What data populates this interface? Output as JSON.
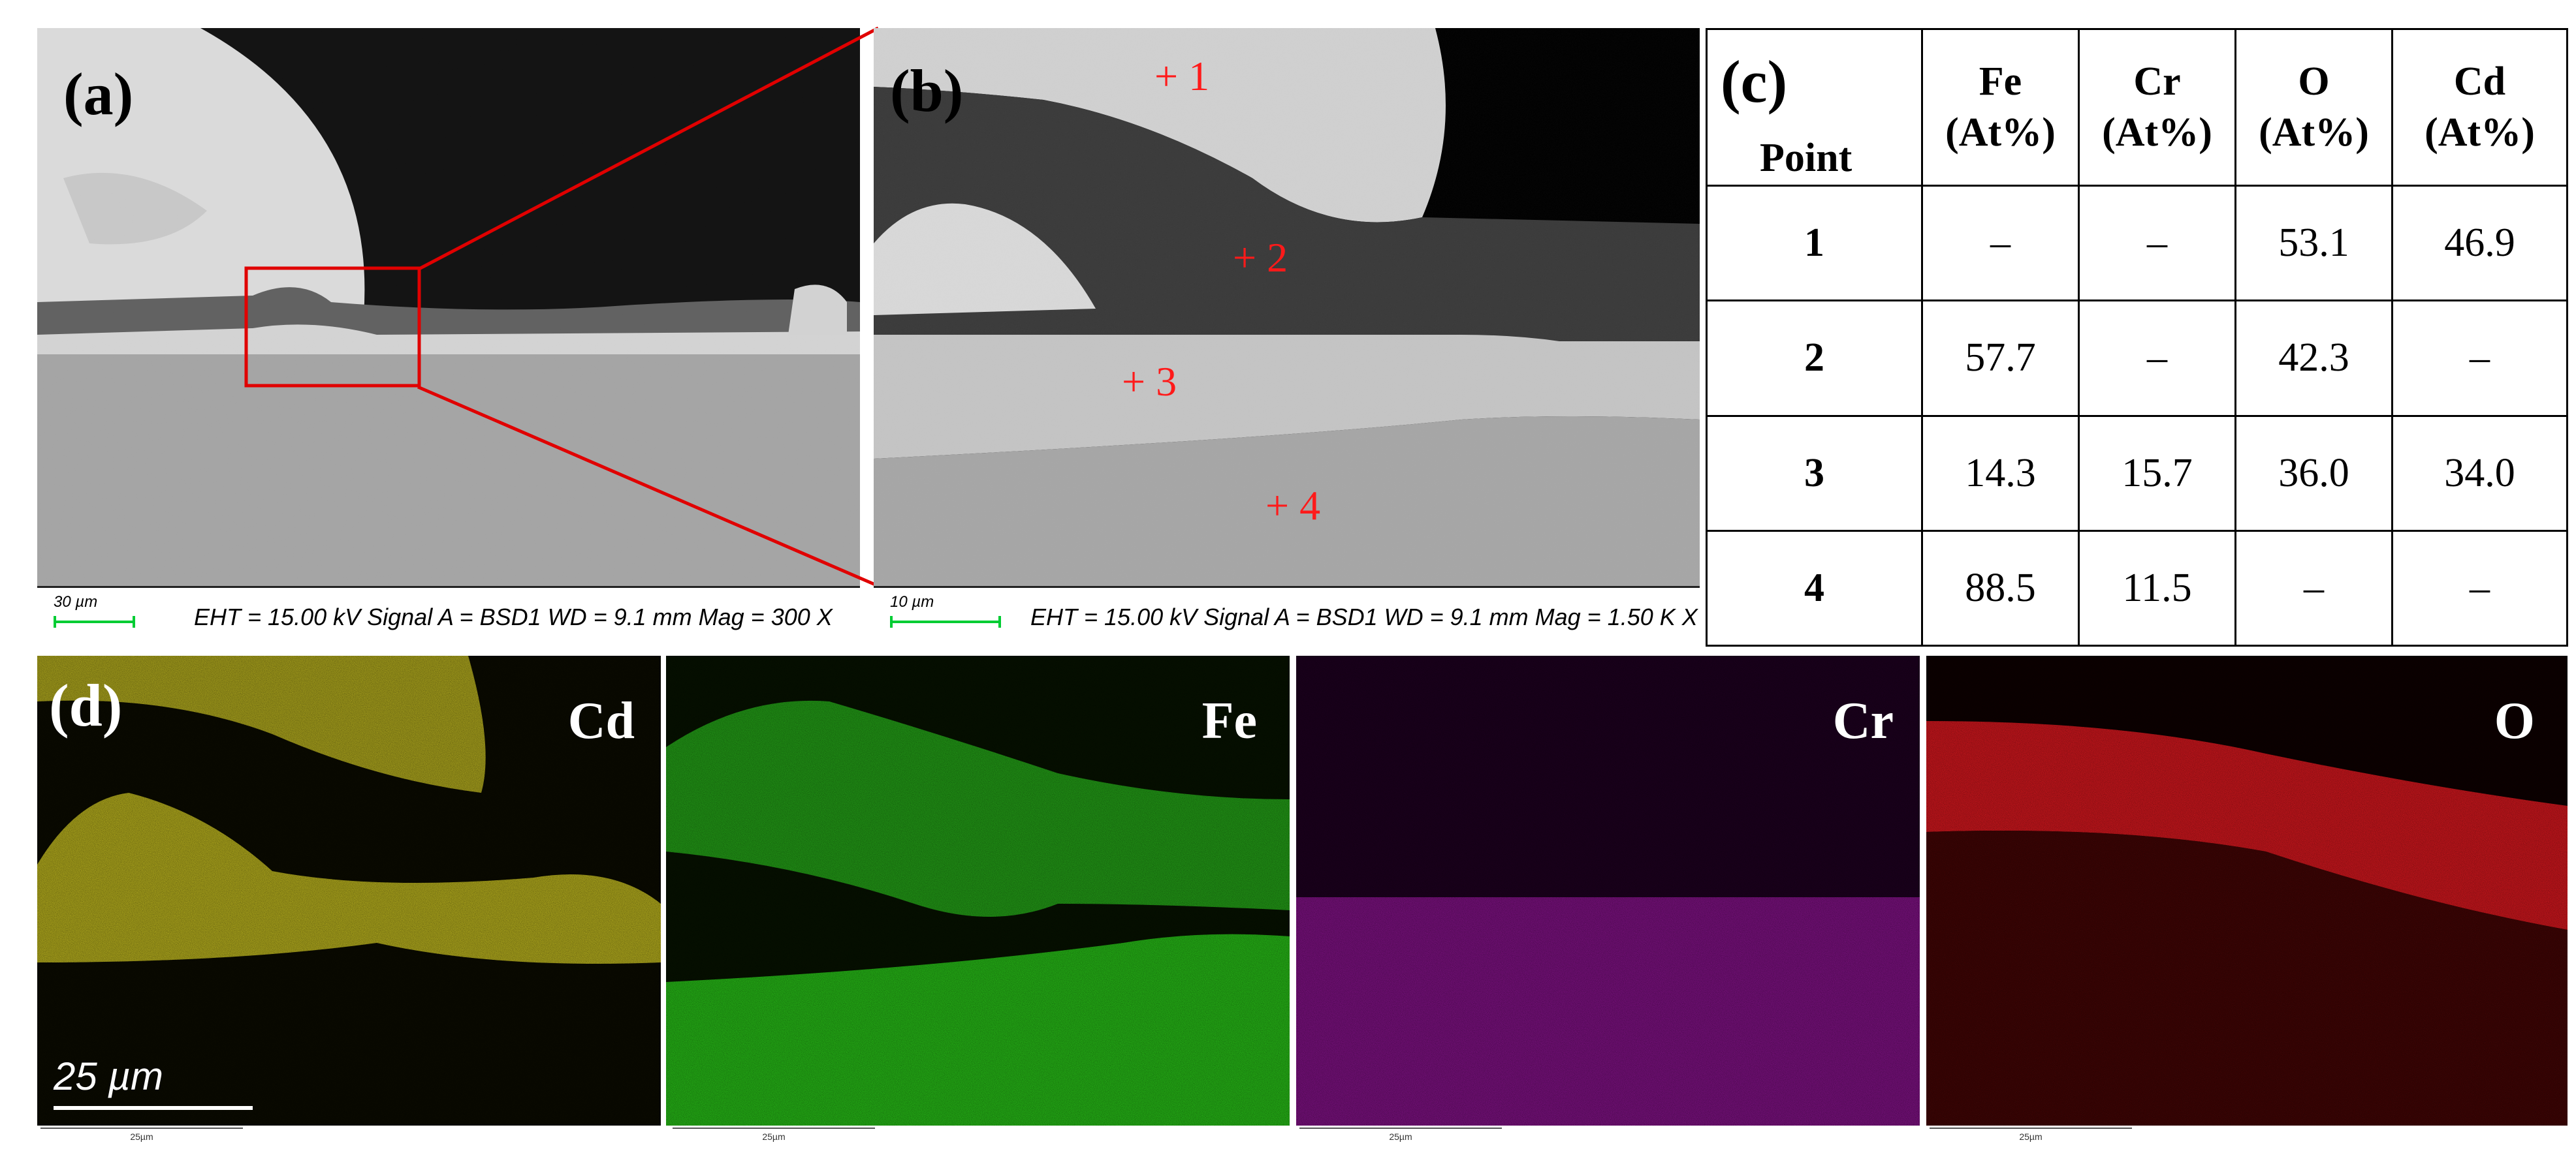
{
  "panels": {
    "a": {
      "label": "(a)",
      "scale_label": "30 µm",
      "info": "EHT = 15.00 kV  Signal A = BSD1  WD = 9.1 mm Mag = 300 X"
    },
    "b": {
      "label": "(b)",
      "scale_label": "10 µm",
      "info": "EHT = 15.00 kV  Signal A = BSD1  WD = 9.1 mm Mag = 1.50 K X",
      "points": [
        "+ 1",
        "+ 2",
        "+ 3",
        "+ 4"
      ]
    },
    "c": {
      "label": "(c)",
      "headers": [
        "Point",
        "Fe\n(At%)",
        "Cr\n(At%)",
        "O\n(At%)",
        "Cd\n(At%)"
      ],
      "rows": [
        [
          "1",
          "–",
          "–",
          "53.1",
          "46.9"
        ],
        [
          "2",
          "57.7",
          "–",
          "42.3",
          "–"
        ],
        [
          "3",
          "14.3",
          "15.7",
          "36.0",
          "34.0"
        ],
        [
          "4",
          "88.5",
          "11.5",
          "–",
          "–"
        ]
      ]
    },
    "d": {
      "label": "(d)",
      "scale_label": "25 µm",
      "map_scale_small": "25µm",
      "maps": [
        {
          "element": "Cd",
          "color": "#d6cc1e"
        },
        {
          "element": "Fe",
          "color": "#26c41a"
        },
        {
          "element": "Cr",
          "color": "#b51ab8"
        },
        {
          "element": "O",
          "color": "#e0161a"
        }
      ]
    }
  },
  "colors": {
    "annotation_red": "#ff1a1a",
    "scale_green": "#00cc33"
  }
}
